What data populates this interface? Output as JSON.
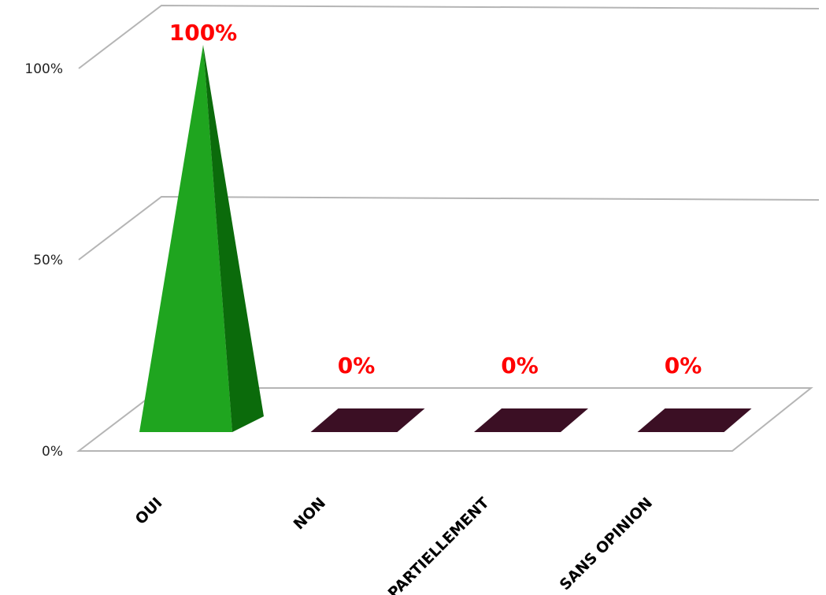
{
  "chart_data": {
    "type": "bar",
    "style": "3d-pyramid",
    "categories": [
      "OUI",
      "NON",
      "PARTIELLEMENT",
      "SANS OPINION"
    ],
    "values": [
      100,
      0,
      0,
      0
    ],
    "data_labels": [
      "100%",
      "0%",
      "0%",
      "0%"
    ],
    "y_ticks": [
      "0%",
      "50%",
      "100%"
    ],
    "ylim": [
      0,
      100
    ],
    "grid": true,
    "legend": "none",
    "colors": {
      "pyramid_front": "#1fa51f",
      "pyramid_side": "#0b6b0b",
      "base_tile": "#3b0f24",
      "data_label": "#ff0000",
      "gridline": "#b5b5b5"
    }
  }
}
